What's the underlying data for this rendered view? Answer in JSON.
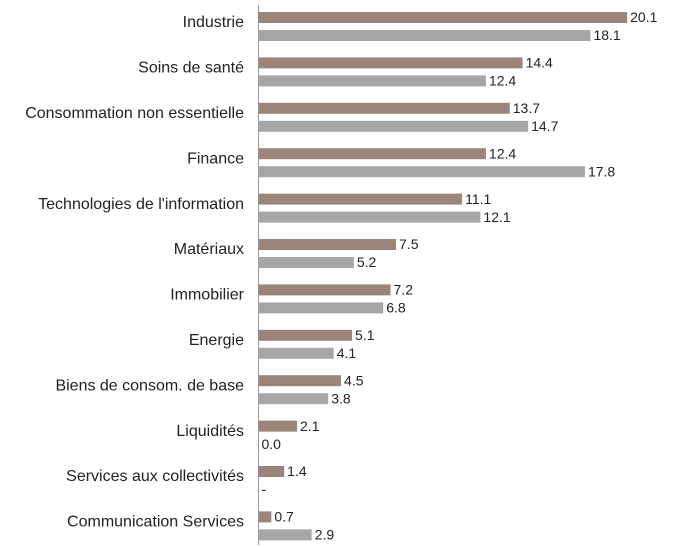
{
  "chart_data": {
    "type": "bar",
    "orientation": "horizontal",
    "categories": [
      "Industrie",
      "Soins de santé",
      "Consommation non essentielle",
      "Finance",
      "Technologies de l'information",
      "Matériaux",
      "Immobilier",
      "Energie",
      "Biens de consom. de base",
      "Liquidités",
      "Services aux collectivités",
      "Communication Services"
    ],
    "series": [
      {
        "color": "#9b857a",
        "values": [
          20.1,
          14.4,
          13.7,
          12.4,
          11.1,
          7.5,
          7.2,
          5.1,
          4.5,
          2.1,
          1.4,
          0.7
        ]
      },
      {
        "color": "#a6a6a6",
        "values": [
          18.1,
          12.4,
          14.7,
          17.8,
          12.1,
          5.2,
          6.8,
          4.1,
          3.8,
          0,
          null,
          2.9
        ],
        "value_labels": [
          "18.1",
          "12.4",
          "14.7",
          "17.8",
          "12.1",
          "5.2",
          "6.8",
          "4.1",
          "3.8",
          "0.0",
          "-",
          "2.9"
        ]
      }
    ],
    "xlim": [
      0,
      22
    ]
  }
}
